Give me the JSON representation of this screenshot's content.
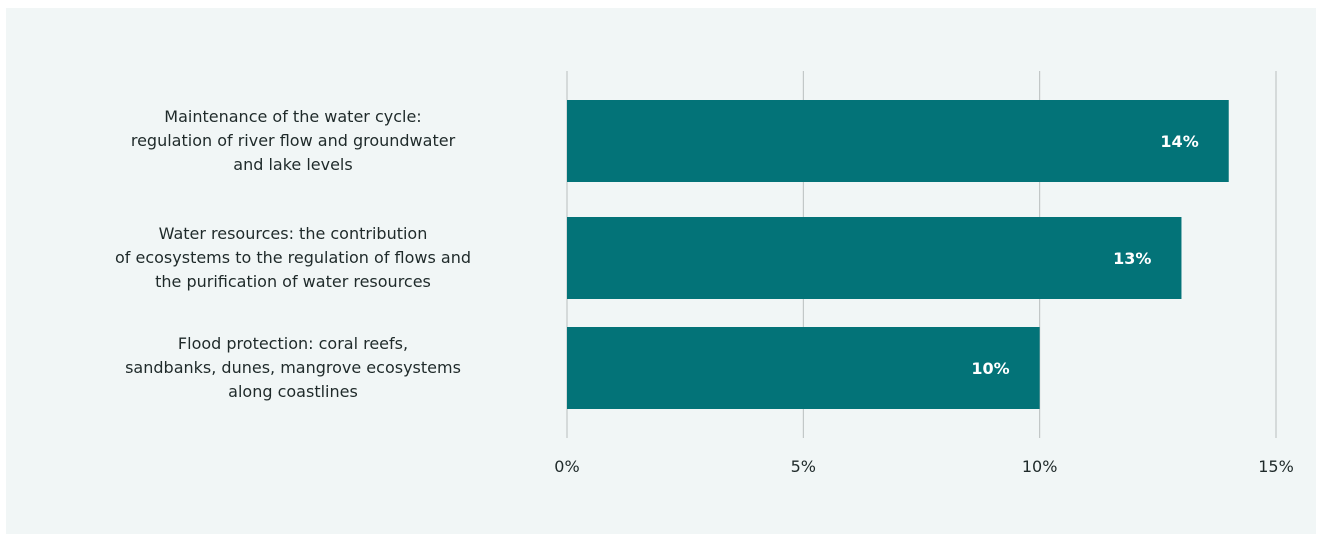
{
  "chart_data": {
    "type": "bar",
    "orientation": "horizontal",
    "categories": [
      [
        "Maintenance of the water cycle:",
        "regulation of river flow and groundwater",
        "and lake levels"
      ],
      [
        "Water resources: the contribution",
        "of ecosystems to the regulation of flows and",
        "the purification of water resources"
      ],
      [
        "Flood protection: coral reefs,",
        "sandbanks, dunes, mangrove ecosystems",
        "along coastlines"
      ]
    ],
    "values": [
      14,
      13,
      10
    ],
    "value_labels": [
      "14%",
      "13%",
      "10%"
    ],
    "xlim": [
      0,
      15
    ],
    "xticks": [
      0,
      5,
      10,
      15
    ],
    "xtick_labels": [
      "0%",
      "5%",
      "10%",
      "15%"
    ],
    "grid": "vertical",
    "legend": "none",
    "colors": {
      "bar": "#037378",
      "grid": "#b9bebe",
      "background": "#f1f6f6",
      "text": "#1f2a2a",
      "value_text": "#ffffff"
    }
  }
}
